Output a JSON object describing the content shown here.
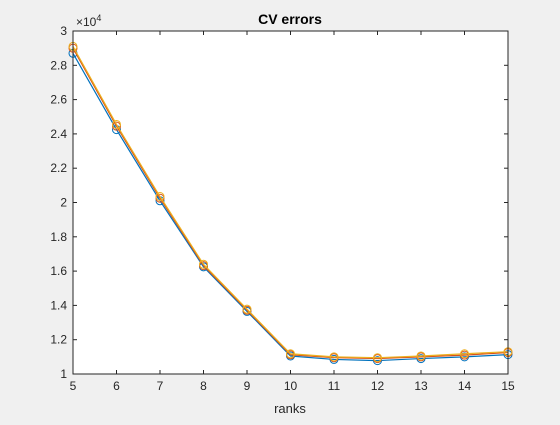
{
  "chart_data": {
    "type": "line",
    "title": "CV errors",
    "xlabel": "ranks",
    "ylabel": "",
    "x": [
      5,
      6,
      7,
      8,
      9,
      10,
      11,
      12,
      13,
      14,
      15
    ],
    "xlim": [
      5,
      15
    ],
    "ylim": [
      1,
      3
    ],
    "y_scale_exponent_label": "×10",
    "y_scale_exponent_value": "4",
    "xticks": [
      "5",
      "6",
      "7",
      "8",
      "9",
      "10",
      "11",
      "12",
      "13",
      "14",
      "15"
    ],
    "yticks": [
      "1",
      "1.2",
      "1.4",
      "1.6",
      "1.8",
      "2",
      "2.2",
      "2.4",
      "2.6",
      "2.8",
      "3"
    ],
    "ytick_values": [
      1,
      1.2,
      1.4,
      1.6,
      1.8,
      2,
      2.2,
      2.4,
      2.6,
      2.8,
      3
    ],
    "grid": false,
    "legend": false,
    "marker": "circle",
    "series": [
      {
        "color": "#0072BD",
        "values": [
          2.87,
          2.425,
          2.01,
          1.625,
          1.365,
          1.105,
          1.085,
          1.078,
          1.09,
          1.1,
          1.113
        ]
      },
      {
        "color": "#D95319",
        "values": [
          2.9,
          2.445,
          2.025,
          1.632,
          1.372,
          1.112,
          1.095,
          1.09,
          1.1,
          1.11,
          1.125
        ]
      },
      {
        "color": "#EDB120",
        "values": [
          2.91,
          2.455,
          2.035,
          1.64,
          1.378,
          1.118,
          1.1,
          1.095,
          1.105,
          1.118,
          1.13
        ]
      }
    ]
  }
}
